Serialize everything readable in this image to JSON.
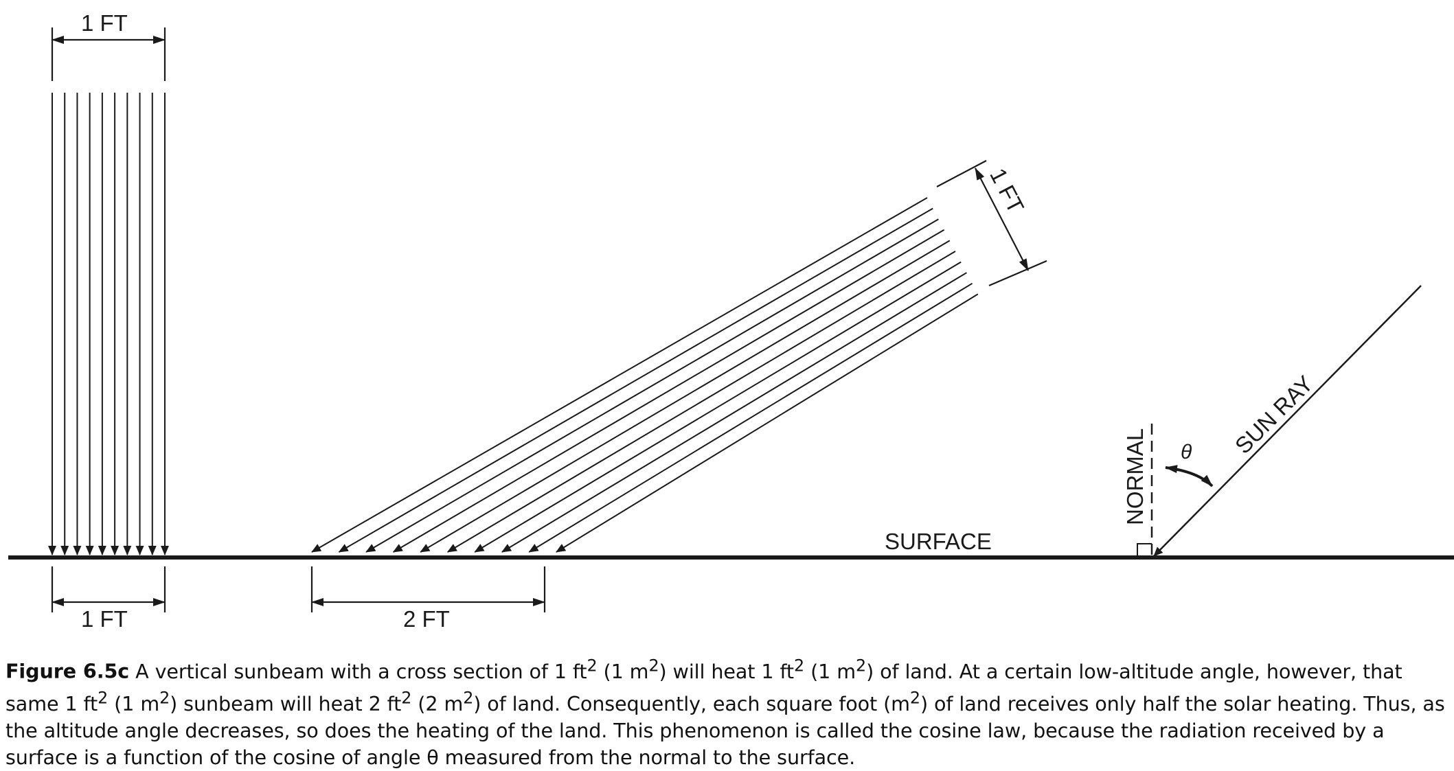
{
  "labels": {
    "vertical_beam_width": "1 FT",
    "vertical_ground_width": "1 FT",
    "slanted_beam_width": "1 FT",
    "slanted_ground_width": "2 FT",
    "surface": "SURFACE",
    "normal": "NORMAL",
    "angle": "θ",
    "sun_ray": "SUN RAY"
  },
  "caption": {
    "figure_number": "Figure 6.5c",
    "text_html": " A vertical sunbeam with a cross section of 1 ft<sup>2</sup> (1 m<sup>2</sup>) will heat 1 ft<sup>2</sup> (1 m<sup>2</sup>) of land. At a certain low-altitude angle, however, that same 1 ft<sup>2</sup> (1 m<sup>2</sup>) sunbeam will heat 2 ft<sup>2</sup> (2 m<sup>2</sup>) of land. Consequently, each square foot (m<sup>2</sup>) of land receives only half the solar heating. Thus, as the altitude angle decreases, so does the heating of the land. This phenomenon is called the cosine law, because the radiation received by a surface is a function of the cosine of angle θ measured from the normal to the surface."
  },
  "colors": {
    "ink": "#1a1a1a",
    "background": "#ffffff"
  }
}
